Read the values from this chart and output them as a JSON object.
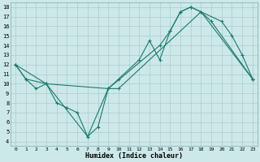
{
  "xlabel": "Humidex (Indice chaleur)",
  "xlim": [
    -0.5,
    23.5
  ],
  "ylim": [
    3.5,
    18.5
  ],
  "xticks": [
    0,
    1,
    2,
    3,
    4,
    5,
    6,
    7,
    8,
    9,
    10,
    11,
    12,
    13,
    14,
    15,
    16,
    17,
    18,
    19,
    20,
    21,
    22,
    23
  ],
  "yticks": [
    4,
    5,
    6,
    7,
    8,
    9,
    10,
    11,
    12,
    13,
    14,
    15,
    16,
    17,
    18
  ],
  "line_color": "#1a7a6e",
  "bg_color": "#cde8e8",
  "grid_color": "#aacccc",
  "s1_x": [
    0,
    1,
    2,
    3,
    4,
    5,
    6,
    7,
    8,
    9,
    10,
    12,
    13,
    14,
    15,
    16,
    17,
    18,
    19,
    23
  ],
  "s1_y": [
    12,
    10.5,
    9.5,
    10,
    8,
    7.5,
    7,
    4.5,
    5.5,
    9.5,
    10.5,
    12.5,
    14.5,
    12.5,
    15.5,
    17.5,
    18,
    17.5,
    16.5,
    10.5
  ],
  "s2_x": [
    0,
    1,
    3,
    9,
    10,
    18,
    23
  ],
  "s2_y": [
    12,
    10.5,
    10,
    9.5,
    9.5,
    17.5,
    10.5
  ],
  "s3_x": [
    0,
    3,
    7,
    9,
    14,
    15,
    16,
    17,
    20,
    21,
    22,
    23
  ],
  "s3_y": [
    12,
    10,
    4.5,
    9.5,
    14,
    15.5,
    17.5,
    18,
    16.5,
    15,
    13,
    10.5
  ]
}
